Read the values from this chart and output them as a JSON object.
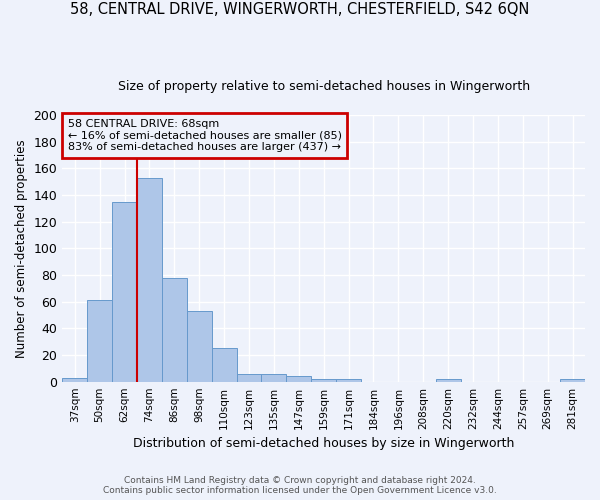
{
  "title": "58, CENTRAL DRIVE, WINGERWORTH, CHESTERFIELD, S42 6QN",
  "subtitle": "Size of property relative to semi-detached houses in Wingerworth",
  "xlabel": "Distribution of semi-detached houses by size in Wingerworth",
  "ylabel": "Number of semi-detached properties",
  "categories": [
    "37sqm",
    "50sqm",
    "62sqm",
    "74sqm",
    "86sqm",
    "98sqm",
    "110sqm",
    "123sqm",
    "135sqm",
    "147sqm",
    "159sqm",
    "171sqm",
    "184sqm",
    "196sqm",
    "208sqm",
    "220sqm",
    "232sqm",
    "244sqm",
    "257sqm",
    "269sqm",
    "281sqm"
  ],
  "values": [
    3,
    61,
    135,
    153,
    78,
    53,
    25,
    6,
    6,
    4,
    2,
    2,
    0,
    0,
    0,
    2,
    0,
    0,
    0,
    0,
    2
  ],
  "bar_color": "#aec6e8",
  "bar_edge_color": "#6699cc",
  "background_color": "#eef2fb",
  "grid_color": "#ffffff",
  "property_size": 68,
  "property_label": "58 CENTRAL DRIVE: 68sqm",
  "pct_smaller": 16,
  "pct_larger": 83,
  "n_smaller": 85,
  "n_larger": 437,
  "annotation_box_color": "#cc0000",
  "property_line_color": "#cc0000",
  "footer_line1": "Contains HM Land Registry data © Crown copyright and database right 2024.",
  "footer_line2": "Contains public sector information licensed under the Open Government Licence v3.0.",
  "ylim": [
    0,
    200
  ],
  "yticks": [
    0,
    20,
    40,
    60,
    80,
    100,
    120,
    140,
    160,
    180,
    200
  ],
  "title_fontsize": 10.5,
  "subtitle_fontsize": 9,
  "ylabel_fontsize": 8.5,
  "xlabel_fontsize": 9
}
